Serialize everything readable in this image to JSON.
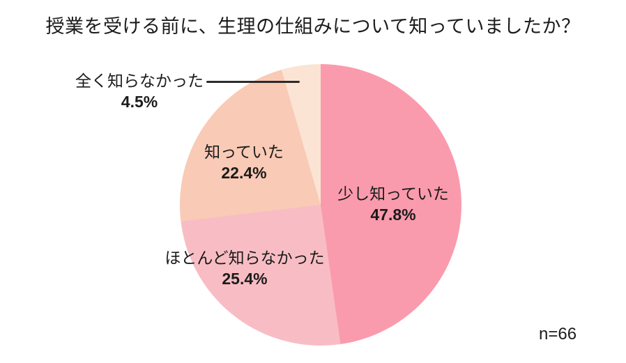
{
  "title": "授業を受ける前に、生理の仕組みについて知っていましたか？",
  "sample_size_label": "n=66",
  "colors": {
    "background": "#ffffff",
    "text": "#1b1b1b",
    "leader_line": "#2b2b2b"
  },
  "chart_data": {
    "type": "pie",
    "title": "授業を受ける前に、生理の仕組みについて知っていましたか？",
    "start_angle_deg": 0,
    "direction": "clockwise",
    "slices": [
      {
        "label": "少し知っていた",
        "value_pct": 47.8,
        "pct_label": "47.8%",
        "color": "#FA9BAD",
        "label_position": "inside"
      },
      {
        "label": "ほとんど知らなかった",
        "value_pct": 25.4,
        "pct_label": "25.4%",
        "color": "#F8BDC4",
        "label_position": "inside"
      },
      {
        "label": "知っていた",
        "value_pct": 22.4,
        "pct_label": "22.4%",
        "color": "#F9CAB5",
        "label_position": "inside"
      },
      {
        "label": "全く知らなかった",
        "value_pct": 4.5,
        "pct_label": "4.5%",
        "color": "#FBE4D4",
        "label_position": "outside-with-leader-line"
      }
    ],
    "legend": "none",
    "annotation": "n=66"
  }
}
